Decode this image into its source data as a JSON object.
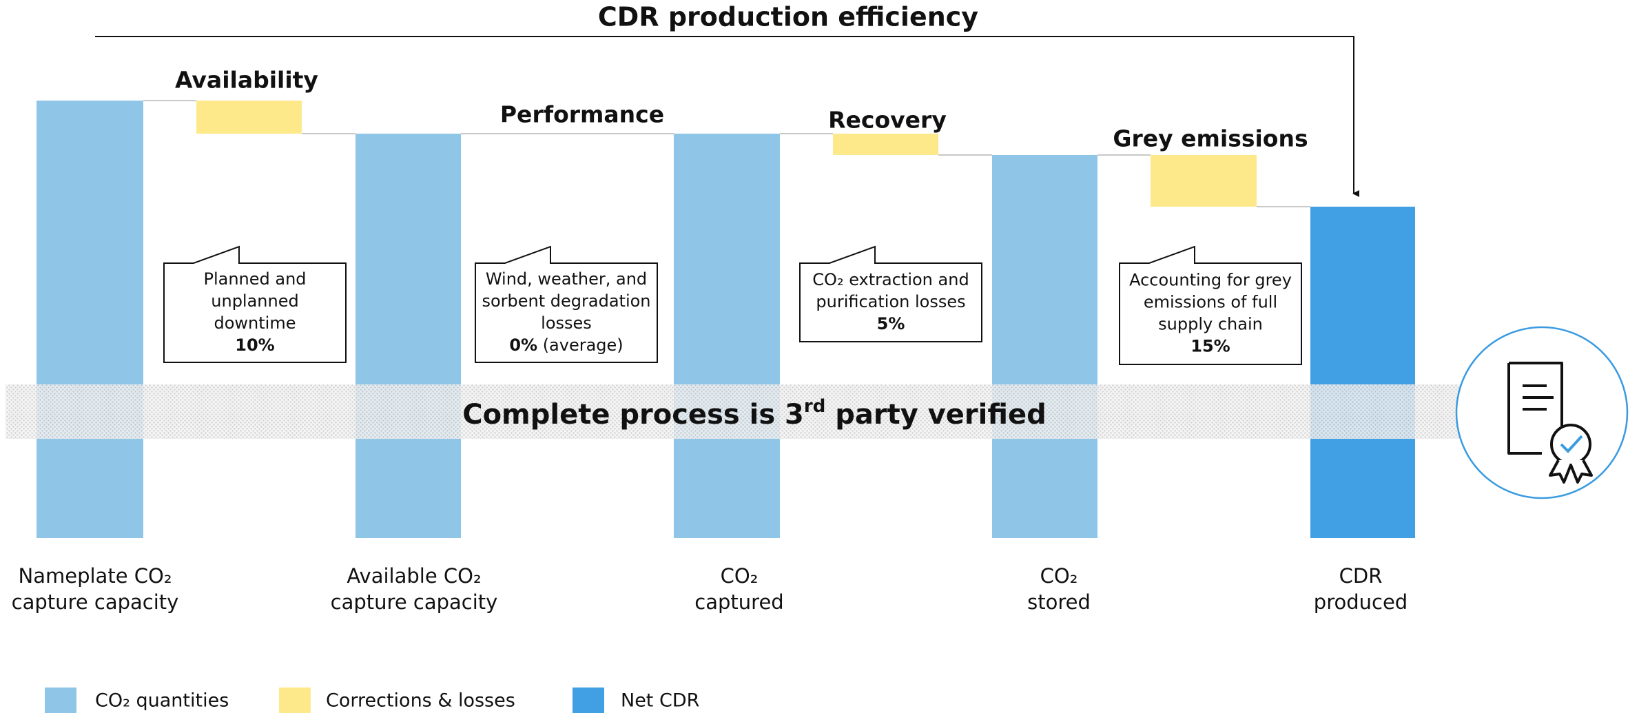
{
  "title": "CDR production efficiency",
  "band_text": {
    "before": "Complete process is 3",
    "sup": "rd",
    "after": " party verified"
  },
  "steps": [
    {
      "label": "Availability",
      "callout": {
        "lines": [
          "Planned and",
          "unplanned",
          "downtime"
        ],
        "value": "10%"
      }
    },
    {
      "label": "Performance",
      "callout": {
        "lines": [
          "Wind, weather, and",
          "sorbent degradation",
          "losses"
        ],
        "value": "0%",
        "note": " (average)"
      }
    },
    {
      "label": "Recovery",
      "callout": {
        "lines": [
          "CO₂ extraction and",
          "purification losses"
        ],
        "value": "5%"
      }
    },
    {
      "label": "Grey emissions",
      "callout": {
        "lines": [
          "Accounting for grey",
          "emissions of full",
          "supply chain"
        ],
        "value": "15%"
      }
    }
  ],
  "categories": [
    [
      "Nameplate CO₂",
      "capture capacity"
    ],
    [
      "Available CO₂",
      "capture capacity"
    ],
    [
      "CO₂",
      "captured"
    ],
    [
      "CO₂",
      "stored"
    ],
    [
      "CDR",
      "produced"
    ]
  ],
  "legend": [
    "CO₂ quantities",
    "Corrections & losses",
    "Net CDR"
  ]
}
